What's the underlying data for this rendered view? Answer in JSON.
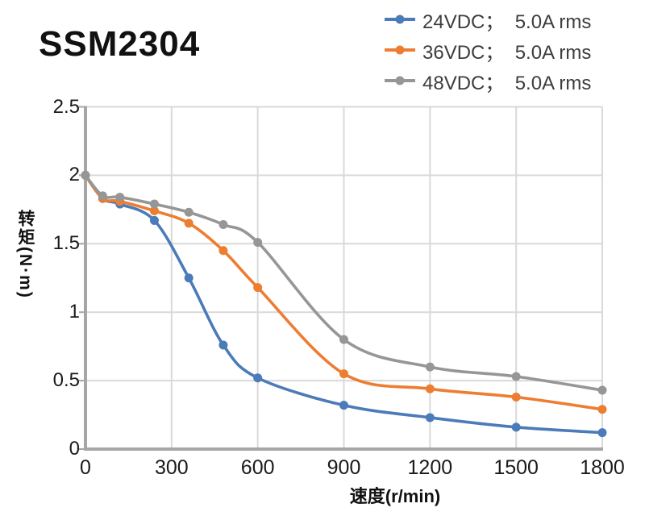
{
  "title": "SSM2304",
  "legend": {
    "items": [
      {
        "label": "24VDC；  5.0A rms",
        "color": "#4B7BB8"
      },
      {
        "label": "36VDC；  5.0A rms",
        "color": "#ED7D31"
      },
      {
        "label": "48VDC；  5.0A rms",
        "color": "#969696"
      }
    ]
  },
  "chart_data": {
    "type": "line",
    "title": "SSM2304",
    "xlabel": "速度(r/min)",
    "ylabel": "转矩(N·m)",
    "line_style": "smooth-with-markers",
    "grid": true,
    "legend_position": "top-right",
    "xlim": [
      0,
      1800
    ],
    "ylim": [
      0,
      2.5
    ],
    "x_ticks": [
      0,
      300,
      600,
      900,
      1200,
      1500,
      1800
    ],
    "y_ticks": [
      0,
      0.5,
      1,
      1.5,
      2,
      2.5
    ],
    "x_tick_labels": [
      "0",
      "300",
      "600",
      "900",
      "1200",
      "1500",
      "1800"
    ],
    "y_tick_labels": [
      "0",
      "0.5",
      "1",
      "1.5",
      "2",
      "2.5"
    ],
    "x": [
      0,
      60,
      120,
      240,
      360,
      480,
      600,
      900,
      1200,
      1500,
      1800
    ],
    "series": [
      {
        "name": "24VDC；  5.0A rms",
        "color": "#4B7BB8",
        "values": [
          2.0,
          1.83,
          1.79,
          1.67,
          1.25,
          0.76,
          0.52,
          0.32,
          0.23,
          0.16,
          0.12
        ]
      },
      {
        "name": "36VDC；  5.0A rms",
        "color": "#ED7D31",
        "values": [
          2.0,
          1.83,
          1.81,
          1.74,
          1.65,
          1.45,
          1.18,
          0.55,
          0.44,
          0.38,
          0.29
        ]
      },
      {
        "name": "48VDC；  5.0A rms",
        "color": "#969696",
        "values": [
          2.0,
          1.85,
          1.84,
          1.79,
          1.73,
          1.64,
          1.51,
          0.8,
          0.6,
          0.53,
          0.43
        ]
      }
    ]
  },
  "colors": {
    "background": "#FFFFFF",
    "gridline": "#D9D9D9",
    "axis": "#A6A6A6",
    "tick_text": "#1A1A1A",
    "legend_text": "#3D3D3D"
  }
}
